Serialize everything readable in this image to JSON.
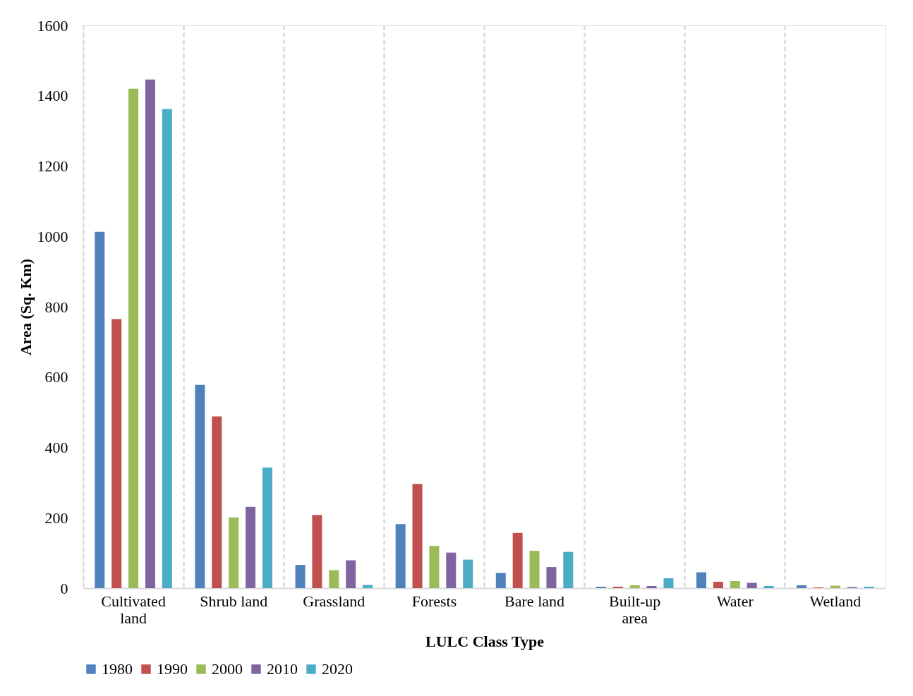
{
  "chart_data": {
    "type": "bar",
    "xlabel": "LULC Class Type",
    "ylabel": "Area (Sq. Km)",
    "categories": [
      "Cultivated land",
      "Shrub land",
      "Grassland",
      "Forests",
      "Bare land",
      "Built-up area",
      "Water",
      "Wetland"
    ],
    "series": [
      {
        "name": "1980",
        "color": "#4f81bd",
        "values": [
          1013,
          578,
          66,
          182,
          43,
          4,
          45,
          8
        ]
      },
      {
        "name": "1990",
        "color": "#c0504d",
        "values": [
          765,
          488,
          208,
          296,
          157,
          4,
          18,
          2
        ]
      },
      {
        "name": "2000",
        "color": "#9bbb59",
        "values": [
          1420,
          201,
          51,
          120,
          106,
          8,
          20,
          7
        ]
      },
      {
        "name": "2010",
        "color": "#8064a2",
        "values": [
          1446,
          231,
          79,
          101,
          60,
          6,
          15,
          3
        ]
      },
      {
        "name": "2020",
        "color": "#4bacc6",
        "values": [
          1362,
          343,
          9,
          81,
          103,
          28,
          6,
          4
        ]
      }
    ],
    "ylim": [
      0,
      1600
    ],
    "yticks": [
      0,
      200,
      400,
      600,
      800,
      1000,
      1200,
      1400,
      1600
    ],
    "grid": "x",
    "legend": "bottom"
  }
}
